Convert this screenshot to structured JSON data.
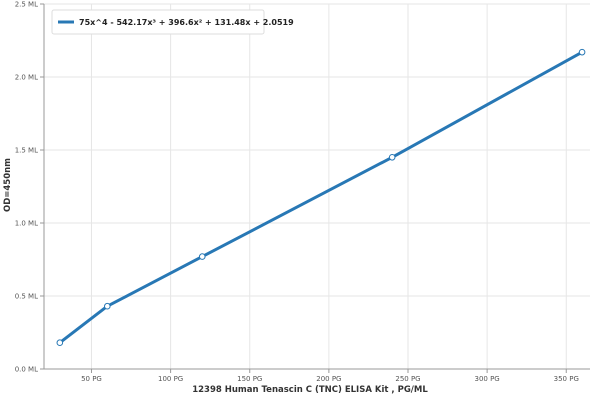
{
  "chart_data": {
    "type": "line",
    "xlabel": "12398 Human Tenascin C (TNC) ELISA Kit , PG/ML",
    "ylabel": "OD=450nm",
    "xlim": [
      20,
      365
    ],
    "ylim": [
      0,
      2.5
    ],
    "x_ticks": [
      50,
      100,
      150,
      200,
      250,
      300,
      350
    ],
    "x_tick_labels": [
      "50 PG",
      "100 PG",
      "150 PG",
      "200 PG",
      "250 PG",
      "300 PG",
      "350 PG"
    ],
    "y_ticks": [
      0.0,
      0.5,
      1.0,
      1.5,
      2.0,
      2.5
    ],
    "y_tick_labels": [
      "0.0 ML",
      "0.5 ML",
      "1.0 ML",
      "1.5 ML",
      "2.0 ML",
      "2.5 ML"
    ],
    "grid": true,
    "legend_position": "top-left",
    "series": [
      {
        "name": "75x^4 - 542.17x³ + 396.6x² + 131.48x + 2.0519",
        "color": "#2878b5",
        "x": [
          30,
          60,
          120,
          240,
          360
        ],
        "y": [
          0.18,
          0.43,
          0.77,
          1.45,
          2.17
        ]
      }
    ]
  }
}
